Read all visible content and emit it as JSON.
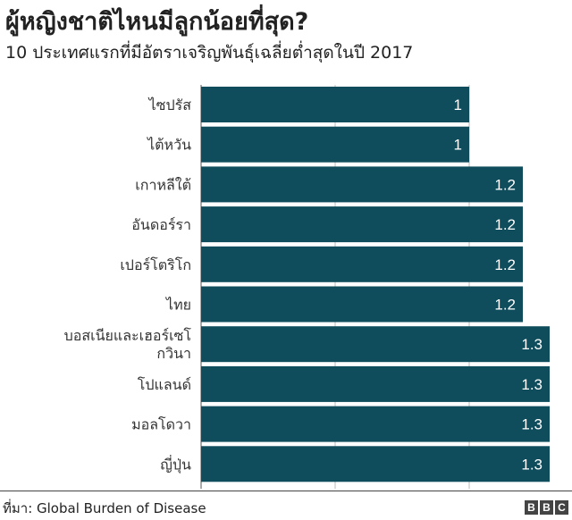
{
  "title": "ผู้หญิงชาติไหนมีลูกน้อยที่สุด?",
  "subtitle": "10 ประเทศแรกที่มีอัตราเจริญพันธุ์เฉลี่ยต่ำสุดในปี 2017",
  "source": "ที่มา: Global Burden of Disease",
  "logo": [
    "B",
    "B",
    "C"
  ],
  "colors": {
    "bar": "#0f4c5c",
    "grid": "#bbbbbb"
  },
  "chart_data": {
    "type": "bar",
    "orientation": "horizontal",
    "categories": [
      [
        "ไซปรัส"
      ],
      [
        "ไต้หวัน"
      ],
      [
        "เกาหลีใต้"
      ],
      [
        "อันดอร์รา"
      ],
      [
        "เปอร์โตริโก"
      ],
      [
        "ไทย"
      ],
      [
        "บอสเนียและเฮอร์เซโ",
        "กวินา"
      ],
      [
        "โปแลนด์"
      ],
      [
        "มอลโดวา"
      ],
      [
        "ญี่ปุ่น"
      ]
    ],
    "values": [
      1,
      1,
      1.2,
      1.2,
      1.2,
      1.2,
      1.3,
      1.3,
      1.3,
      1.3
    ],
    "xlim": [
      0,
      1.3
    ],
    "gridlines": [
      0,
      0.5,
      1.0
    ],
    "grid": true,
    "title": "ผู้หญิงชาติไหนมีลูกน้อยที่สุด?"
  }
}
